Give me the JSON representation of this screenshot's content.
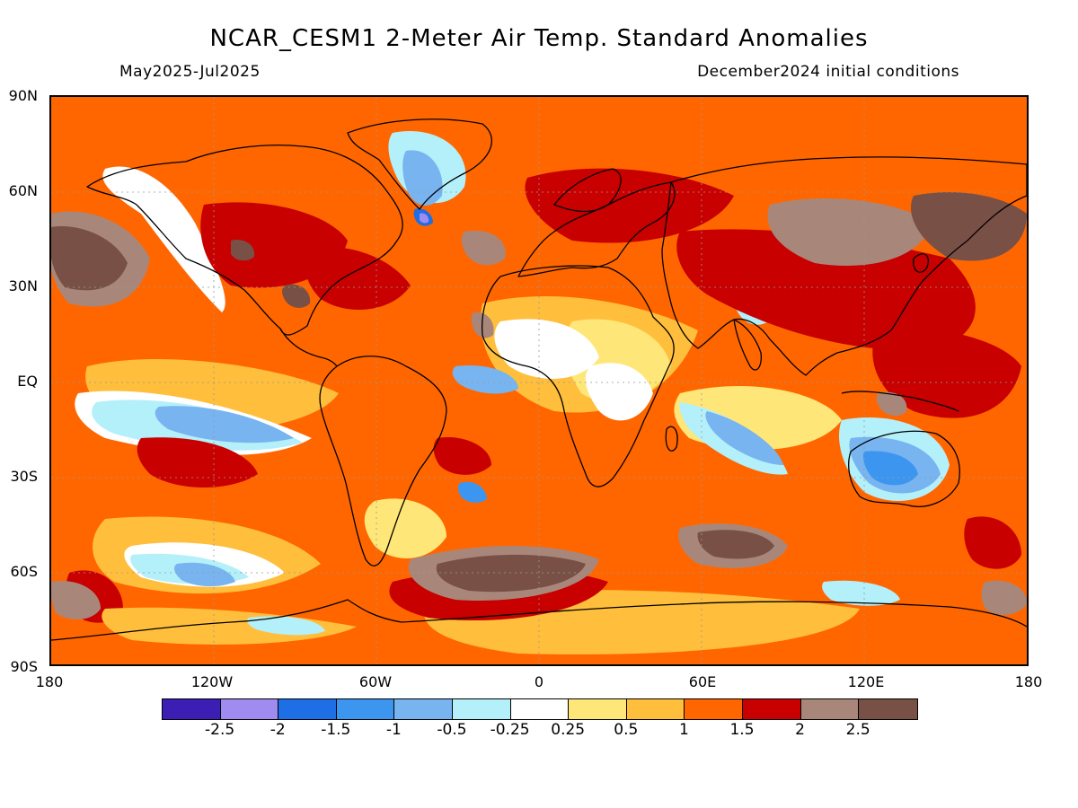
{
  "header": {
    "title": "NCAR_CESM1 2-Meter Air Temp. Standard Anomalies",
    "period": "May2025-Jul2025",
    "initial_conditions": "December2024 initial conditions"
  },
  "map": {
    "lat_labels": [
      "90N",
      "60N",
      "30N",
      "EQ",
      "30S",
      "60S",
      "90S"
    ],
    "lon_labels": [
      "180",
      "120W",
      "60W",
      "0",
      "60E",
      "120E",
      "180"
    ],
    "background_color": "#ff6600"
  },
  "colorbar": {
    "colors": [
      "#3c1eb4",
      "#a08cf0",
      "#1e6ee6",
      "#3c96f0",
      "#78b4f0",
      "#b4f0fa",
      "#ffffff",
      "#ffe678",
      "#ffbe3c",
      "#ff6600",
      "#c80000",
      "#a8877a",
      "#785046"
    ],
    "labels": [
      "-2.5",
      "-2",
      "-1.5",
      "-1",
      "-0.5",
      "-0.25",
      "0.25",
      "0.5",
      "1",
      "1.5",
      "2",
      "2.5"
    ]
  }
}
